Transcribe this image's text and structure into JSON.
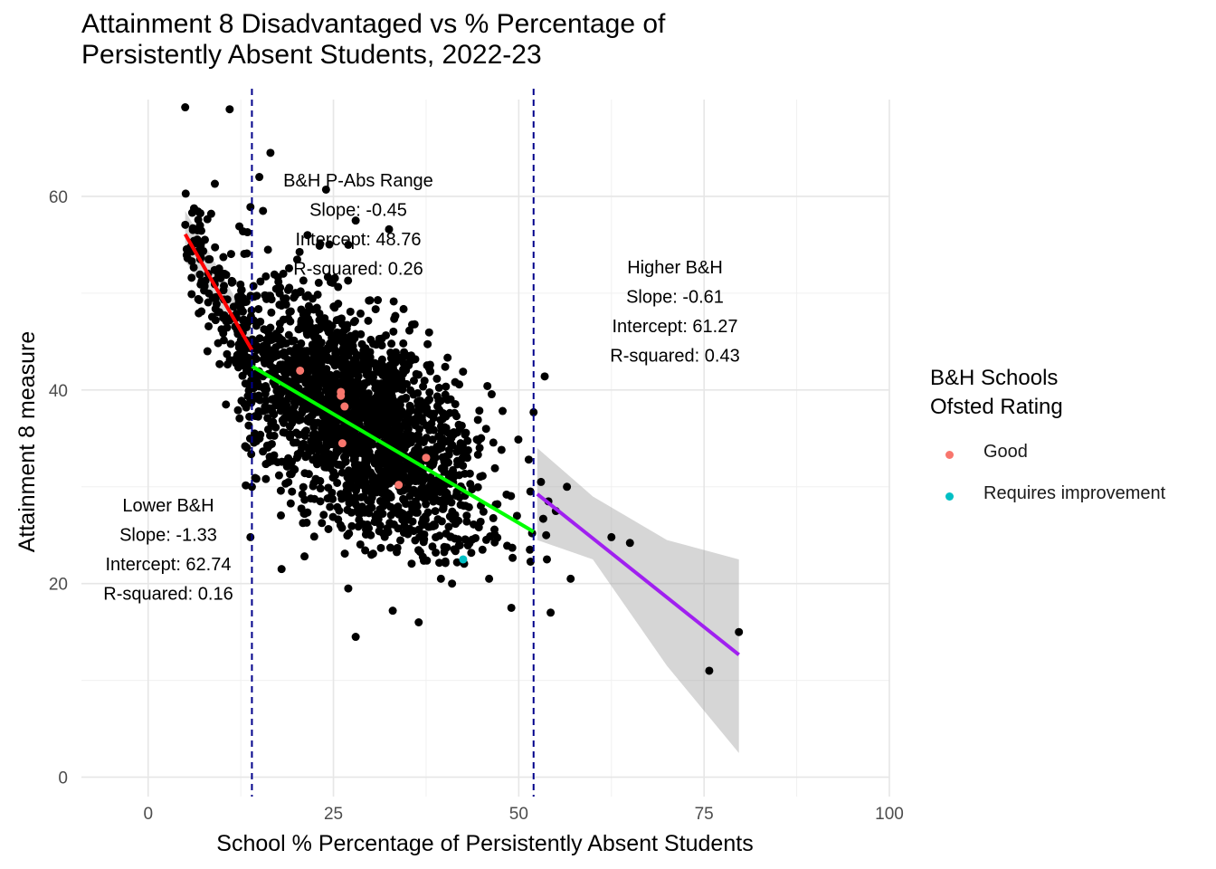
{
  "chart_data": {
    "type": "scatter",
    "title": "Attainment 8 Disadvantaged vs % Percentage of\nPersistently Absent Students, 2022-23",
    "xlabel": "School % Percentage of Persistently Absent Students",
    "ylabel": "Attainment 8 measure",
    "xlim": [
      -9,
      100
    ],
    "ylim": [
      -2,
      70
    ],
    "x_ticks": [
      0,
      25,
      50,
      75,
      100
    ],
    "y_ticks": [
      0,
      20,
      40,
      60
    ],
    "grid": true,
    "legend": {
      "title": "B&H Schools\nOfsted Rating",
      "placement": "right",
      "entries": [
        {
          "label": "Good",
          "color": "#f8766d"
        },
        {
          "label": "Requires improvement",
          "color": "#00bfc4"
        }
      ]
    },
    "vlines": [
      14,
      52
    ],
    "series": [
      {
        "name": "Good",
        "color": "#f8766d",
        "points": [
          [
            20.5,
            42
          ],
          [
            26,
            39.8
          ],
          [
            26,
            39.4
          ],
          [
            26.5,
            38.3
          ],
          [
            26.2,
            34.5
          ],
          [
            37.5,
            33
          ],
          [
            33.8,
            30.2
          ]
        ]
      },
      {
        "name": "Requires improvement",
        "color": "#00bfc4",
        "points": [
          [
            42.5,
            22.5
          ]
        ]
      }
    ],
    "other_schools": {
      "color": "#000000",
      "highlighted_points": [
        [
          5,
          69.2
        ],
        [
          11,
          69
        ],
        [
          16.5,
          64.5
        ],
        [
          9,
          61.3
        ],
        [
          15,
          62
        ],
        [
          24,
          60.7
        ],
        [
          7,
          57
        ],
        [
          13.8,
          58.9
        ],
        [
          15.5,
          58.5
        ],
        [
          21.5,
          56
        ],
        [
          28,
          57.5
        ],
        [
          32.5,
          56.6
        ],
        [
          27,
          55
        ],
        [
          53.5,
          41.4
        ],
        [
          52,
          37.7
        ],
        [
          53,
          30.5
        ],
        [
          56.5,
          30
        ],
        [
          62.5,
          24.8
        ],
        [
          65,
          24.2
        ],
        [
          53.7,
          25
        ],
        [
          53.3,
          26.7
        ],
        [
          55,
          27.5
        ],
        [
          54,
          28.5
        ],
        [
          51.8,
          25.2
        ],
        [
          51.5,
          23.5
        ],
        [
          53.8,
          22.5
        ],
        [
          54.3,
          17
        ],
        [
          57,
          20.5
        ],
        [
          79.7,
          15
        ],
        [
          75.7,
          11
        ],
        [
          28,
          14.5
        ],
        [
          33,
          17.2
        ],
        [
          36.5,
          16
        ],
        [
          49,
          17.5
        ],
        [
          39.5,
          20.5
        ],
        [
          41,
          20
        ],
        [
          46,
          20.5
        ],
        [
          18,
          21.5
        ],
        [
          27,
          19.5
        ],
        [
          10.5,
          38.5
        ],
        [
          8,
          44
        ],
        [
          14,
          30
        ],
        [
          13.8,
          24.8
        ]
      ],
      "cloud": {
        "count": 2100,
        "x_mean": 28,
        "x_sd": 8.5,
        "intercept": 49.5,
        "slope": -0.45,
        "resid_sd": 5.5,
        "x_min": 12,
        "x_max": 52
      }
    },
    "fits": [
      {
        "label": "Lower B&H",
        "x_range": [
          5,
          14
        ],
        "slope": -1.33,
        "intercept": 62.74,
        "r_squared": 0.16,
        "color": "#ff0000",
        "ci": [
          [
            5,
            58.5,
            53.3
          ],
          [
            14,
            46.5,
            43.7
          ]
        ]
      },
      {
        "label": "B&H P-Abs Range",
        "x_range": [
          14,
          52
        ],
        "slope": -0.45,
        "intercept": 48.76,
        "r_squared": 0.26,
        "color": "#00ff00"
      },
      {
        "label": "Higher B&H",
        "x_range": [
          52.5,
          79.7
        ],
        "slope": -0.61,
        "intercept": 61.27,
        "r_squared": 0.43,
        "color": "#a020f0",
        "ci": [
          [
            52.5,
            34,
            24.5
          ],
          [
            60,
            29,
            22.5
          ],
          [
            70,
            24.5,
            11.5
          ],
          [
            79.7,
            22.5,
            2.5
          ]
        ]
      }
    ],
    "annotations": [
      {
        "lines": [
          "B&H P-Abs Range",
          "Slope: -0.45",
          "Intercept: 48.76",
          "R-squared: 0.26"
        ]
      },
      {
        "lines": [
          "Higher B&H",
          "Slope: -0.61",
          "Intercept: 61.27",
          "R-squared: 0.43"
        ]
      },
      {
        "lines": [
          "Lower B&H",
          "Slope: -1.33",
          "Intercept: 62.74",
          "R-squared: 0.16"
        ]
      }
    ]
  }
}
